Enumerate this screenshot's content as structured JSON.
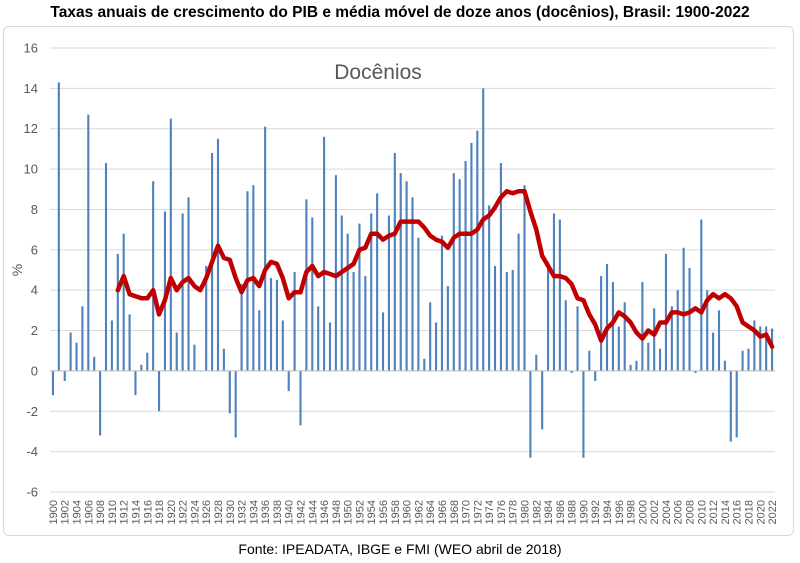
{
  "title": "Taxas anuais de crescimento do PIB e média móvel de doze anos (docênios), Brasil: 1900-2022",
  "source": "Fonte: IPEADATA, IBGE e FMI (WEO abril de 2018)",
  "chart_data": {
    "type": "bar",
    "title": "Docênios",
    "ylabel": "%",
    "xlabel": "",
    "ylim": [
      -6,
      16
    ],
    "yticks": [
      -6,
      -4,
      -2,
      0,
      2,
      4,
      6,
      8,
      10,
      12,
      14,
      16
    ],
    "xtick_labels": [
      "1900",
      "1902",
      "1904",
      "1906",
      "1908",
      "1910",
      "1912",
      "1914",
      "1916",
      "1918",
      "1920",
      "1922",
      "1924",
      "1926",
      "1928",
      "1930",
      "1932",
      "1934",
      "1936",
      "1938",
      "1940",
      "1942",
      "1944",
      "1946",
      "1948",
      "1950",
      "1952",
      "1954",
      "1956",
      "1958",
      "1960",
      "1962",
      "1964",
      "1966",
      "1968",
      "1970",
      "1972",
      "1974",
      "1976",
      "1978",
      "1980",
      "1982",
      "1984",
      "1986",
      "1988",
      "1990",
      "1992",
      "1994",
      "1996",
      "1998",
      "2000",
      "2002",
      "2004",
      "2006",
      "2008",
      "2010",
      "2012",
      "2014",
      "2016",
      "2018",
      "2020",
      "2022"
    ],
    "grid": "horizontal",
    "colors": {
      "bars": "#4f81bd",
      "moving_average": "#c00000"
    },
    "series": [
      {
        "kind": "bar",
        "x": [
          1900,
          1901,
          1902,
          1903,
          1904,
          1905,
          1906,
          1907,
          1908,
          1909,
          1910,
          1911,
          1912,
          1913,
          1914,
          1915,
          1916,
          1917,
          1918,
          1919,
          1920,
          1921,
          1922,
          1923,
          1924,
          1925,
          1926,
          1927,
          1928,
          1929,
          1930,
          1931,
          1932,
          1933,
          1934,
          1935,
          1936,
          1937,
          1938,
          1939,
          1940,
          1941,
          1942,
          1943,
          1944,
          1945,
          1946,
          1947,
          1948,
          1949,
          1950,
          1951,
          1952,
          1953,
          1954,
          1955,
          1956,
          1957,
          1958,
          1959,
          1960,
          1961,
          1962,
          1963,
          1964,
          1965,
          1966,
          1967,
          1968,
          1969,
          1970,
          1971,
          1972,
          1973,
          1974,
          1975,
          1976,
          1977,
          1978,
          1979,
          1980,
          1981,
          1982,
          1983,
          1984,
          1985,
          1986,
          1987,
          1988,
          1989,
          1990,
          1991,
          1992,
          1993,
          1994,
          1995,
          1996,
          1997,
          1998,
          1999,
          2000,
          2001,
          2002,
          2003,
          2004,
          2005,
          2006,
          2007,
          2008,
          2009,
          2010,
          2011,
          2012,
          2013,
          2014,
          2015,
          2016,
          2017,
          2018,
          2019,
          2020,
          2021,
          2022
        ],
        "values": [
          -1.2,
          14.3,
          -0.5,
          1.9,
          1.4,
          3.2,
          12.7,
          0.7,
          -3.2,
          10.3,
          2.5,
          5.8,
          6.8,
          2.8,
          -1.2,
          0.3,
          0.9,
          9.4,
          -2.0,
          7.9,
          12.5,
          1.9,
          7.8,
          8.6,
          1.3,
          0.0,
          5.2,
          10.8,
          11.5,
          1.1,
          -2.1,
          -3.3,
          4.3,
          8.9,
          9.2,
          3.0,
          12.1,
          4.6,
          4.5,
          2.5,
          -1.0,
          4.9,
          -2.7,
          8.5,
          7.6,
          3.2,
          11.6,
          2.4,
          9.7,
          7.7,
          6.8,
          4.9,
          7.3,
          4.7,
          7.8,
          8.8,
          2.9,
          7.7,
          10.8,
          9.8,
          9.4,
          8.6,
          6.6,
          0.6,
          3.4,
          2.4,
          6.7,
          4.2,
          9.8,
          9.5,
          10.4,
          11.3,
          11.9,
          14.0,
          8.2,
          5.2,
          10.3,
          4.9,
          5.0,
          6.8,
          9.2,
          -4.3,
          0.8,
          -2.9,
          5.4,
          7.8,
          7.5,
          3.5,
          -0.1,
          3.2,
          -4.3,
          1.0,
          -0.5,
          4.7,
          5.3,
          4.4,
          2.2,
          3.4,
          0.3,
          0.5,
          4.4,
          1.4,
          3.1,
          1.1,
          5.8,
          3.2,
          4.0,
          6.1,
          5.1,
          -0.1,
          7.5,
          4.0,
          1.9,
          3.0,
          0.5,
          -3.5,
          -3.3,
          1.0,
          1.1,
          2.5,
          2.2,
          2.2,
          2.1
        ]
      },
      {
        "kind": "line",
        "x": [
          1911,
          1912,
          1913,
          1914,
          1915,
          1916,
          1917,
          1918,
          1919,
          1920,
          1921,
          1922,
          1923,
          1924,
          1925,
          1926,
          1927,
          1928,
          1929,
          1930,
          1931,
          1932,
          1933,
          1934,
          1935,
          1936,
          1937,
          1938,
          1939,
          1940,
          1941,
          1942,
          1943,
          1944,
          1945,
          1946,
          1947,
          1948,
          1949,
          1950,
          1951,
          1952,
          1953,
          1954,
          1955,
          1956,
          1957,
          1958,
          1959,
          1960,
          1961,
          1962,
          1963,
          1964,
          1965,
          1966,
          1967,
          1968,
          1969,
          1970,
          1971,
          1972,
          1973,
          1974,
          1975,
          1976,
          1977,
          1978,
          1979,
          1980,
          1981,
          1982,
          1983,
          1984,
          1985,
          1986,
          1987,
          1988,
          1989,
          1990,
          1991,
          1992,
          1993,
          1994,
          1995,
          1996,
          1997,
          1998,
          1999,
          2000,
          2001,
          2002,
          2003,
          2004,
          2005,
          2006,
          2007,
          2008,
          2009,
          2010,
          2011,
          2012,
          2013,
          2014,
          2015,
          2016,
          2017,
          2018,
          2019,
          2020,
          2021,
          2022
        ],
        "values": [
          4.0,
          4.7,
          3.8,
          3.7,
          3.6,
          3.6,
          4.0,
          2.8,
          3.5,
          4.6,
          4.0,
          4.4,
          4.6,
          4.2,
          4.0,
          4.6,
          5.4,
          6.2,
          5.6,
          5.5,
          4.6,
          3.9,
          4.5,
          4.6,
          4.2,
          5.0,
          5.4,
          5.3,
          4.6,
          3.6,
          3.9,
          3.9,
          4.9,
          5.2,
          4.7,
          4.9,
          4.8,
          4.7,
          4.9,
          5.1,
          5.3,
          6.0,
          6.1,
          6.8,
          6.8,
          6.5,
          6.7,
          6.8,
          7.4,
          7.4,
          7.4,
          7.4,
          7.1,
          6.7,
          6.5,
          6.4,
          6.1,
          6.6,
          6.8,
          6.8,
          6.8,
          7.0,
          7.5,
          7.7,
          8.1,
          8.6,
          8.9,
          8.8,
          8.9,
          8.9,
          7.9,
          7.0,
          5.7,
          5.2,
          4.7,
          4.7,
          4.6,
          4.3,
          3.6,
          3.5,
          2.8,
          2.3,
          1.5,
          2.1,
          2.4,
          2.9,
          2.7,
          2.4,
          1.9,
          1.6,
          2.0,
          1.8,
          2.4,
          2.4,
          2.9,
          2.9,
          2.8,
          2.9,
          3.1,
          2.9,
          3.5,
          3.8,
          3.6,
          3.8,
          3.6,
          3.2,
          2.4,
          2.2,
          2.0,
          1.7,
          1.8,
          1.2
        ]
      }
    ]
  }
}
